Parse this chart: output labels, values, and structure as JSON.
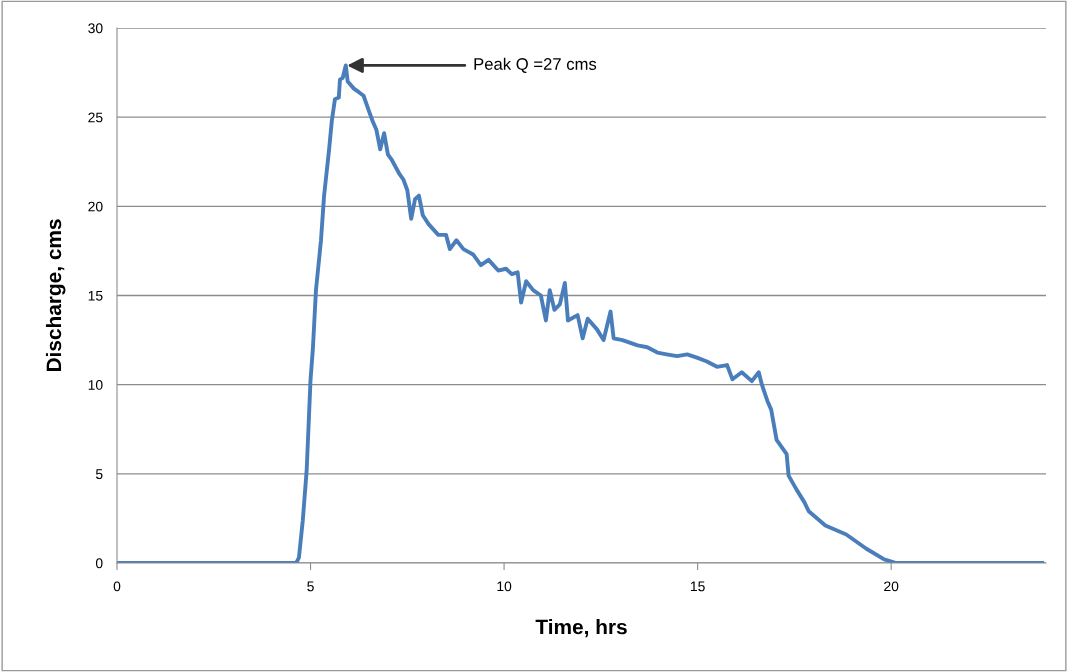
{
  "chart_data": {
    "type": "line",
    "xlabel": "Time, hrs",
    "ylabel": "Discharge, cms",
    "x": [
      0,
      4.63,
      4.7,
      4.8,
      4.9,
      5.0,
      5.06,
      5.14,
      5.27,
      5.35,
      5.48,
      5.55,
      5.63,
      5.73,
      5.76,
      5.83,
      5.91,
      5.96,
      6.12,
      6.25,
      6.37,
      6.5,
      6.6,
      6.7,
      6.8,
      6.9,
      7.0,
      7.1,
      7.3,
      7.4,
      7.5,
      7.6,
      7.7,
      7.8,
      7.9,
      8.05,
      8.3,
      8.5,
      8.6,
      8.77,
      8.95,
      9.2,
      9.4,
      9.6,
      9.85,
      10.05,
      10.2,
      10.35,
      10.44,
      10.57,
      10.75,
      10.95,
      11.08,
      11.18,
      11.3,
      11.44,
      11.57,
      11.65,
      11.9,
      12.03,
      12.16,
      12.4,
      12.57,
      12.75,
      12.83,
      13.06,
      13.45,
      13.7,
      13.96,
      14.2,
      14.47,
      14.73,
      15.0,
      15.24,
      15.5,
      15.76,
      15.9,
      16.14,
      16.4,
      16.58,
      16.66,
      16.8,
      16.9,
      17.04,
      17.3,
      17.35,
      17.56,
      17.76,
      17.87,
      18.3,
      18.84,
      19.36,
      19.82,
      20.13,
      23.9
    ],
    "series": [
      {
        "color": "#4a7ebb",
        "values": [
          0,
          0,
          0.3,
          2.4,
          5.2,
          10.3,
          12,
          15.3,
          18.1,
          20.6,
          23.2,
          24.8,
          26.0,
          26.1,
          27.1,
          27.2,
          27.9,
          27.0,
          26.6,
          26.4,
          26.2,
          25.4,
          24.8,
          24.3,
          23.2,
          24.1,
          22.9,
          22.6,
          21.8,
          21.5,
          20.9,
          19.3,
          20.4,
          20.6,
          19.5,
          19.0,
          18.4,
          18.4,
          17.6,
          18.1,
          17.6,
          17.3,
          16.7,
          17.0,
          16.4,
          16.5,
          16.2,
          16.3,
          14.6,
          15.8,
          15.3,
          15.0,
          13.6,
          15.3,
          14.2,
          14.5,
          15.7,
          13.6,
          13.9,
          12.6,
          13.7,
          13.1,
          12.5,
          14.1,
          12.6,
          12.5,
          12.2,
          12.1,
          11.8,
          11.7,
          11.6,
          11.7,
          11.5,
          11.3,
          11.0,
          11.1,
          10.3,
          10.7,
          10.2,
          10.7,
          10.0,
          9.1,
          8.6,
          6.9,
          6.1,
          4.9,
          4.1,
          3.4,
          2.9,
          2.1,
          1.6,
          0.8,
          0.2,
          0,
          0
        ]
      }
    ],
    "xlim": [
      0,
      24
    ],
    "xticks": [
      0,
      5,
      10,
      15,
      20
    ],
    "ylim": [
      0,
      30
    ],
    "yticks": [
      0,
      5,
      10,
      15,
      20,
      25,
      30
    ],
    "grid": "y",
    "legend": false,
    "marker": "none",
    "line_style": "solid",
    "annotations": [
      {
        "text": "Peak Q =27 cms",
        "x": 5.91,
        "y": 27.9
      }
    ]
  }
}
